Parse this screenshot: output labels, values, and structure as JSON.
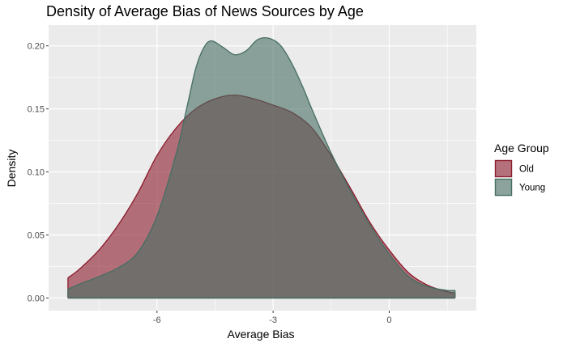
{
  "chart_data": {
    "type": "area",
    "title": "Density of Average Bias of News Sources by Age",
    "xlabel": "Average Bias",
    "ylabel": "Density",
    "xlim": [
      -8.8,
      2.25
    ],
    "ylim": [
      -0.01,
      0.2165
    ],
    "x_ticks": [
      -6,
      -3,
      0
    ],
    "x_tick_labels": [
      "-6",
      "-3",
      "0"
    ],
    "y_ticks": [
      0.0,
      0.05,
      0.1,
      0.15,
      0.2
    ],
    "y_tick_labels": [
      "0.00",
      "0.05",
      "0.10",
      "0.15",
      "0.20"
    ],
    "grid": true,
    "legend": {
      "title": "Age Group",
      "placement": "right",
      "entries": [
        "Old",
        "Young"
      ]
    },
    "colors": {
      "Old": "#8b1a2b",
      "Young": "#466e62",
      "overlap": "#5d5e5b",
      "panel": "#ebebeb",
      "grid": "#ffffff"
    },
    "series": [
      {
        "name": "Old",
        "x": [
          -8.3,
          -8.0,
          -7.5,
          -7.0,
          -6.5,
          -6.0,
          -5.5,
          -5.0,
          -4.5,
          -4.0,
          -3.5,
          -3.0,
          -2.5,
          -2.0,
          -1.5,
          -1.0,
          -0.5,
          0.0,
          0.5,
          1.0,
          1.5,
          1.7
        ],
        "values": [
          0.016,
          0.023,
          0.038,
          0.058,
          0.083,
          0.113,
          0.135,
          0.15,
          0.158,
          0.161,
          0.158,
          0.153,
          0.147,
          0.135,
          0.113,
          0.087,
          0.06,
          0.038,
          0.02,
          0.01,
          0.005,
          0.004
        ]
      },
      {
        "name": "Young",
        "x": [
          -8.3,
          -8.0,
          -7.5,
          -7.0,
          -6.5,
          -6.0,
          -5.5,
          -5.2,
          -5.0,
          -4.8,
          -4.6,
          -4.3,
          -4.0,
          -3.7,
          -3.4,
          -3.1,
          -2.8,
          -2.5,
          -2.2,
          -2.0,
          -1.5,
          -1.0,
          -0.5,
          0.0,
          0.5,
          1.0,
          1.5,
          1.7
        ],
        "values": [
          0.007,
          0.011,
          0.017,
          0.024,
          0.036,
          0.065,
          0.115,
          0.155,
          0.182,
          0.198,
          0.204,
          0.199,
          0.193,
          0.196,
          0.205,
          0.206,
          0.2,
          0.185,
          0.165,
          0.15,
          0.115,
          0.085,
          0.058,
          0.035,
          0.017,
          0.009,
          0.006,
          0.006
        ]
      }
    ]
  }
}
